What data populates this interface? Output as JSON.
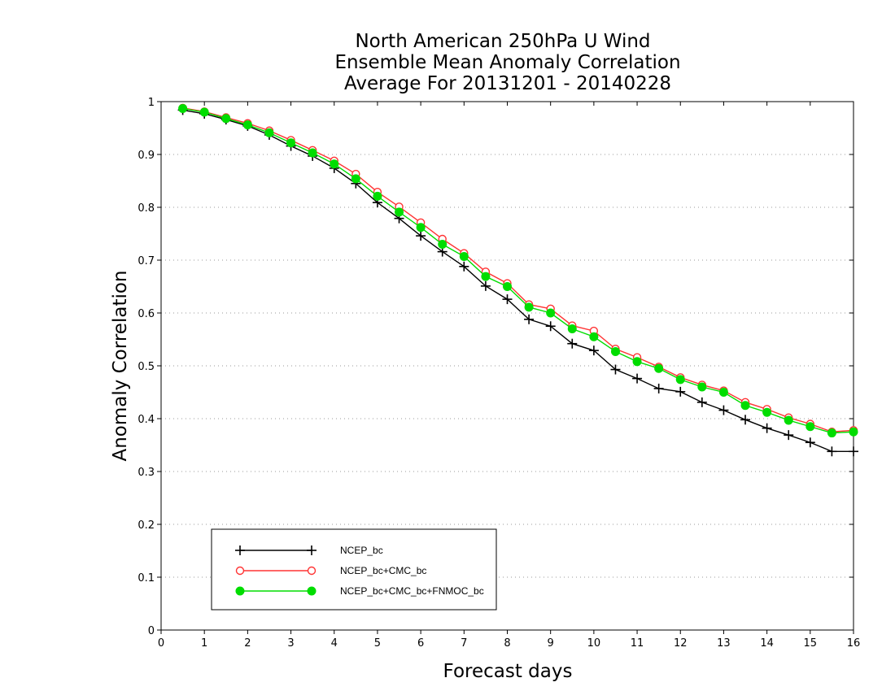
{
  "chart_data": {
    "type": "line",
    "title": [
      "North American 250hPa U Wind",
      "Ensemble Mean Anomaly Correlation",
      "Average For 20131201 - 20140228"
    ],
    "xlabel": "Forecast days",
    "ylabel": "Anomaly Correlation",
    "xlim": [
      0,
      16
    ],
    "ylim": [
      0,
      1
    ],
    "xticks": [
      0,
      1,
      2,
      3,
      4,
      5,
      6,
      7,
      8,
      9,
      10,
      11,
      12,
      13,
      14,
      15,
      16
    ],
    "yticks": [
      0,
      0.1,
      0.2,
      0.3,
      0.4,
      0.5,
      0.6,
      0.7,
      0.8,
      0.9,
      1
    ],
    "grid": true,
    "legend_position": "bottom-left",
    "x": [
      0.5,
      1,
      1.5,
      2,
      2.5,
      3,
      3.5,
      4,
      4.5,
      5,
      5.5,
      6,
      6.5,
      7,
      7.5,
      8,
      8.5,
      9,
      9.5,
      10,
      10.5,
      11,
      11.5,
      12,
      12.5,
      13,
      13.5,
      14,
      14.5,
      15,
      15.5,
      16
    ],
    "series": [
      {
        "name": "NCEP_bc",
        "color": "#000000",
        "marker": "plus",
        "values": [
          0.984,
          0.977,
          0.966,
          0.954,
          0.937,
          0.916,
          0.897,
          0.874,
          0.845,
          0.809,
          0.779,
          0.746,
          0.716,
          0.688,
          0.651,
          0.626,
          0.588,
          0.575,
          0.542,
          0.529,
          0.493,
          0.476,
          0.457,
          0.451,
          0.431,
          0.416,
          0.398,
          0.382,
          0.369,
          0.355,
          0.338,
          0.338
        ]
      },
      {
        "name": "NCEP_bc+CMC_bc",
        "color": "#ff3333",
        "marker": "open-circle",
        "values": [
          0.988,
          0.981,
          0.97,
          0.959,
          0.945,
          0.927,
          0.908,
          0.888,
          0.863,
          0.829,
          0.801,
          0.771,
          0.74,
          0.713,
          0.678,
          0.656,
          0.616,
          0.608,
          0.576,
          0.566,
          0.532,
          0.516,
          0.498,
          0.478,
          0.464,
          0.453,
          0.431,
          0.418,
          0.402,
          0.39,
          0.375,
          0.378
        ]
      },
      {
        "name": "NCEP_bc+CMC_bc+FNMOC_bc",
        "color": "#00dd00",
        "marker": "filled-circle",
        "values": [
          0.987,
          0.98,
          0.968,
          0.956,
          0.941,
          0.922,
          0.903,
          0.882,
          0.854,
          0.821,
          0.791,
          0.762,
          0.73,
          0.707,
          0.669,
          0.65,
          0.611,
          0.6,
          0.57,
          0.555,
          0.527,
          0.508,
          0.495,
          0.474,
          0.46,
          0.45,
          0.425,
          0.412,
          0.397,
          0.385,
          0.373,
          0.375
        ]
      }
    ]
  }
}
